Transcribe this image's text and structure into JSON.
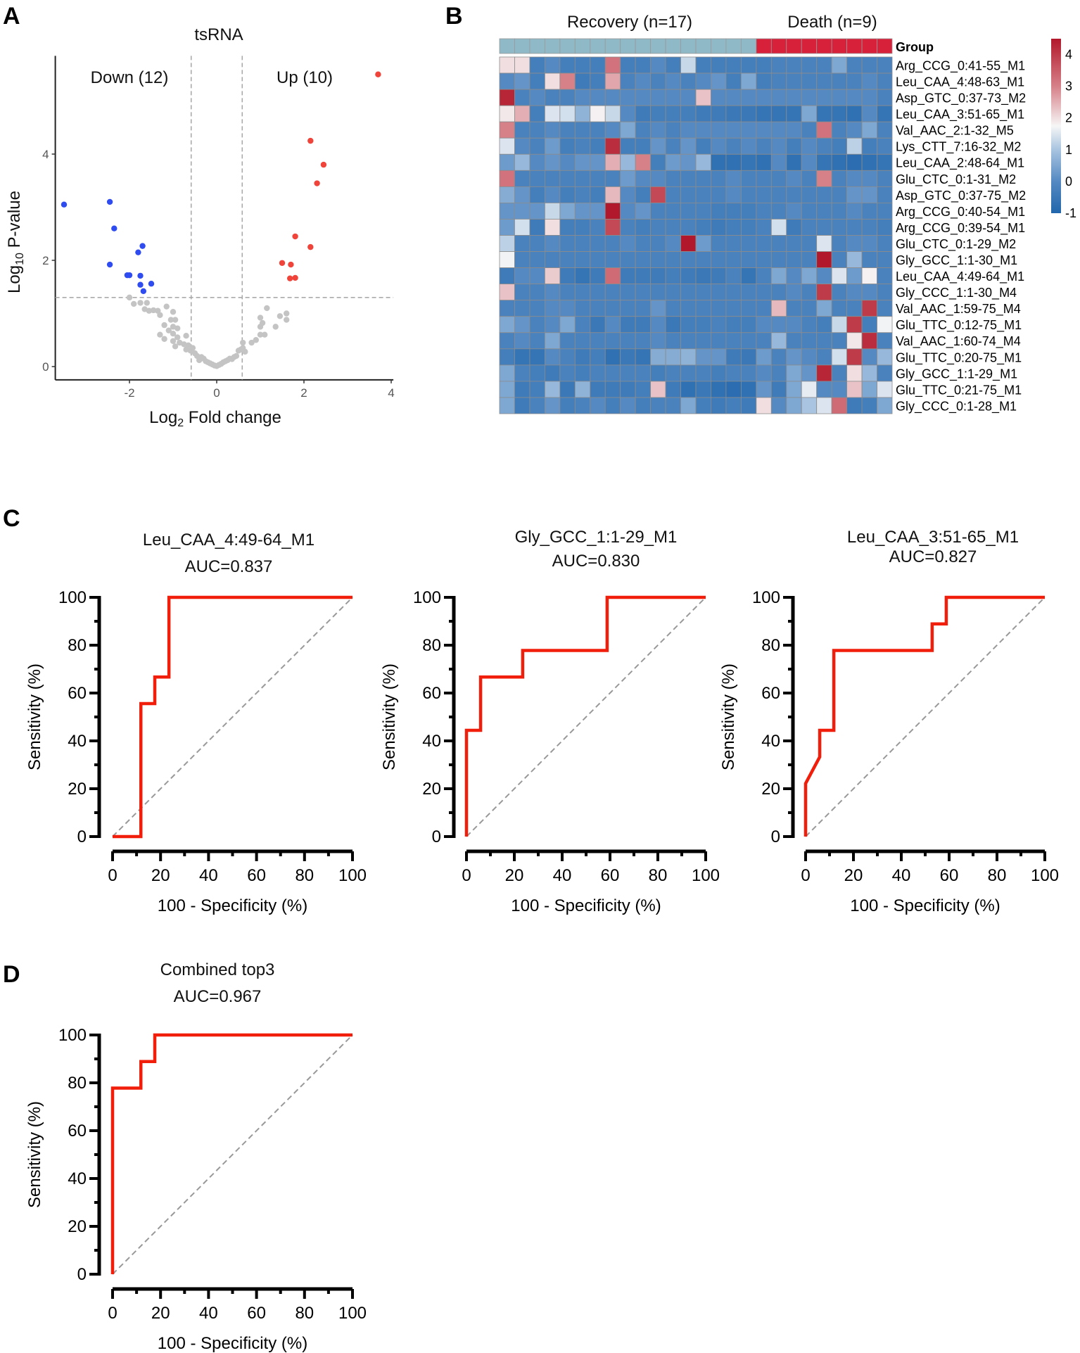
{
  "panel_labels": [
    "A",
    "B",
    "C",
    "D"
  ],
  "chart_data": [
    {
      "type": "scatter",
      "title": "tsRNA",
      "xlabel": "Log2 Fold change",
      "ylabel": "Log10 P-value",
      "xlim": [
        -3.7,
        4.05
      ],
      "ylim": [
        -0.25,
        5.85
      ],
      "xticks": [
        -2,
        0,
        2,
        4
      ],
      "yticks": [
        0,
        2,
        4
      ],
      "thresholds": {
        "x": [
          -0.585,
          0.585
        ],
        "y": 1.3
      },
      "annotations": {
        "down": "Down (12)",
        "up": "Up (10)"
      },
      "colors": {
        "up": "#f0443a",
        "down": "#2f4cf0",
        "ns": "#c4c4c4"
      },
      "up": [
        [
          3.7,
          5.5
        ],
        [
          2.15,
          4.25
        ],
        [
          2.45,
          3.8
        ],
        [
          2.3,
          3.45
        ],
        [
          1.8,
          2.45
        ],
        [
          2.15,
          2.25
        ],
        [
          1.5,
          1.95
        ],
        [
          1.7,
          1.92
        ],
        [
          1.68,
          1.66
        ],
        [
          1.8,
          1.67
        ]
      ],
      "down": [
        [
          -3.5,
          3.05
        ],
        [
          -2.45,
          3.1
        ],
        [
          -2.35,
          2.6
        ],
        [
          -1.7,
          2.27
        ],
        [
          -1.8,
          2.15
        ],
        [
          -2.45,
          1.92
        ],
        [
          -2.05,
          1.72
        ],
        [
          -2.0,
          1.72
        ],
        [
          -1.75,
          1.71
        ],
        [
          -1.75,
          1.54
        ],
        [
          -1.5,
          1.56
        ],
        [
          -1.68,
          1.42
        ]
      ],
      "ns": [
        [
          -2,
          1.3
        ],
        [
          -1.9,
          1.18
        ],
        [
          -1.75,
          1.2
        ],
        [
          -1.6,
          1.2
        ],
        [
          -1.65,
          1.08
        ],
        [
          -1.55,
          1.05
        ],
        [
          -1.45,
          1.06
        ],
        [
          -1.35,
          1.05
        ],
        [
          -1.15,
          1.13
        ],
        [
          -1.0,
          1.03
        ],
        [
          -1.3,
          0.97
        ],
        [
          -1.05,
          0.88
        ],
        [
          -0.95,
          0.88
        ],
        [
          -1.2,
          0.78
        ],
        [
          -1.0,
          0.75
        ],
        [
          -0.9,
          0.72
        ],
        [
          -1.1,
          0.68
        ],
        [
          -1.3,
          0.6
        ],
        [
          -1.2,
          0.52
        ],
        [
          -1.0,
          0.62
        ],
        [
          -0.9,
          0.55
        ],
        [
          -1.0,
          0.48
        ],
        [
          -0.7,
          0.58
        ],
        [
          -0.85,
          0.45
        ],
        [
          -0.75,
          0.42
        ],
        [
          -0.65,
          0.4
        ],
        [
          -0.95,
          0.38
        ],
        [
          -0.55,
          0.35
        ],
        [
          -0.6,
          0.3
        ],
        [
          -0.7,
          0.32
        ],
        [
          -0.5,
          0.25
        ],
        [
          -0.45,
          0.2
        ],
        [
          -0.35,
          0.18
        ],
        [
          -0.3,
          0.15
        ],
        [
          -0.4,
          0.12
        ],
        [
          -0.25,
          0.1
        ],
        [
          -0.2,
          0.08
        ],
        [
          -0.15,
          0.06
        ],
        [
          -0.1,
          0.04
        ],
        [
          -0.05,
          0.02
        ],
        [
          0,
          0.01
        ],
        [
          0.05,
          0.03
        ],
        [
          0.1,
          0.05
        ],
        [
          0.15,
          0.08
        ],
        [
          0.2,
          0.1
        ],
        [
          0.25,
          0.12
        ],
        [
          0.3,
          0.15
        ],
        [
          0.35,
          0.14
        ],
        [
          0.4,
          0.18
        ],
        [
          0.45,
          0.2
        ],
        [
          0.5,
          0.3
        ],
        [
          0.55,
          0.32
        ],
        [
          0.6,
          0.45
        ],
        [
          0.6,
          0.35
        ],
        [
          0.65,
          0.28
        ],
        [
          0.8,
          0.45
        ],
        [
          0.9,
          0.5
        ],
        [
          1.0,
          0.6
        ],
        [
          1.0,
          0.75
        ],
        [
          1.05,
          0.82
        ],
        [
          1.0,
          0.92
        ],
        [
          1.1,
          0.6
        ],
        [
          1.15,
          1.1
        ],
        [
          1.35,
          0.75
        ],
        [
          1.45,
          0.95
        ],
        [
          1.6,
          0.88
        ],
        [
          1.6,
          1.0
        ]
      ]
    },
    {
      "type": "heatmap",
      "group_labels": [
        "Recovery (n=17)",
        "Death (n=9)"
      ],
      "group_counts": [
        17,
        9
      ],
      "group_title": "Group",
      "group_colors": [
        "#8fb9c6",
        "#d7213a"
      ],
      "colorbar_ticks": [
        4,
        3,
        2,
        1,
        0,
        -1
      ],
      "colorbar_range": [
        -1,
        4.5
      ],
      "rows": [
        "Arg_CCG_0:41-55_M1",
        "Leu_CAA_4:48-63_M1",
        "Asp_GTC_0:37-73_M2",
        "Leu_CAA_3:51-65_M1",
        "Val_AAC_2:1-32_M5",
        "Lys_CTT_7:16-32_M2",
        "Leu_CAA_2:48-64_M1",
        "Glu_CTC_0:1-31_M2",
        "Asp_GTC_0:37-75_M2",
        "Arg_CCG_0:40-54_M1",
        "Arg_CCG_0:39-54_M1",
        "Glu_CTC_0:1-29_M2",
        "Gly_GCC_1:1-30_M1",
        "Leu_CAA_4:49-64_M1",
        "Gly_CCC_1:1-30_M4",
        "Val_AAC_1:59-75_M4",
        "Glu_TTC_0:12-75_M1",
        "Val_AAC_1:60-74_M4",
        "Glu_TTC_0:20-75_M1",
        "Gly_GCC_1:1-29_M1",
        "Glu_TTC_0:21-75_M1",
        "Gly_CCC_0:1-28_M1"
      ],
      "values": [
        [
          2,
          2,
          -0.3,
          0,
          -0.3,
          -0.3,
          -0.3,
          3.2,
          -0.3,
          -0.3,
          0,
          -0.3,
          1.3,
          -0.3,
          -0.3,
          -0.3,
          -0.3,
          -0.3,
          -0.2,
          -0.2,
          -0.2,
          -0.2,
          0.5,
          -0.2,
          -0.2,
          -0.2
        ],
        [
          0,
          0.2,
          -0.3,
          2,
          3,
          -0.4,
          -0.3,
          2.6,
          -0.2,
          0,
          -0.2,
          0,
          -0.2,
          0,
          0.2,
          -0.3,
          0.5,
          -0.3,
          -0.2,
          -0.2,
          -0.2,
          -0.2,
          -0.2,
          -0.2,
          0,
          -0.2
        ],
        [
          4.3,
          -0.2,
          0,
          -0.2,
          -0.2,
          0,
          0,
          0,
          0,
          0,
          0,
          0,
          0,
          2.3,
          0,
          0,
          0,
          0,
          0,
          0,
          0,
          0,
          0,
          0,
          0,
          -0.2
        ],
        [
          1.9,
          2.5,
          -0.3,
          1.5,
          1.4,
          0.7,
          1.8,
          1.3,
          0,
          -0.4,
          -0.3,
          -0.3,
          -0.3,
          -0.4,
          -0.4,
          -0.5,
          -0.5,
          -0.6,
          -0.6,
          -0.6,
          0.5,
          -0.6,
          -0.6,
          -0.7,
          0,
          -0.6
        ],
        [
          3,
          -0.2,
          -0.2,
          0,
          -0.2,
          -0.2,
          -0.2,
          0,
          0.5,
          -0.2,
          0,
          -0.2,
          0,
          0,
          0,
          0,
          0,
          0,
          0,
          0,
          -0.2,
          3.2,
          -0.2,
          0,
          0.5,
          -0.2
        ],
        [
          1.5,
          0,
          -0.2,
          0.3,
          -0.3,
          -0.2,
          -0.3,
          4.2,
          -0.3,
          -0.3,
          0.2,
          -0.2,
          0.2,
          -0.3,
          0,
          -0.2,
          0,
          -0.2,
          0,
          -0.3,
          0,
          -0.2,
          -0.3,
          1.2,
          -0.3,
          -0.2
        ],
        [
          0.3,
          0.8,
          0,
          0.2,
          0,
          0.2,
          0.2,
          2.5,
          0.8,
          3,
          -0.3,
          0.3,
          0.2,
          0.8,
          -0.7,
          -0.7,
          -0.6,
          -0.7,
          0,
          -0.7,
          0,
          -0.6,
          -0.7,
          -0.8,
          -0.7,
          -0.6
        ],
        [
          3.2,
          -0.2,
          -0.2,
          -0.2,
          -0.2,
          -0.2,
          -0.2,
          -0.2,
          0.3,
          0,
          0,
          -0.2,
          -0.2,
          -0.2,
          -0.2,
          0,
          -0.2,
          -0.2,
          -0.2,
          0,
          -0.2,
          3,
          -0.2,
          0,
          0,
          -0.2
        ],
        [
          0.6,
          0.2,
          -0.3,
          0,
          -0.3,
          -0.2,
          -0.3,
          2.4,
          0,
          -0.3,
          3.8,
          -0.2,
          -0.2,
          -0.2,
          -0.2,
          0,
          -0.2,
          -0.2,
          -0.2,
          -0.2,
          -0.2,
          -0.2,
          -0.2,
          0.2,
          0.2,
          -0.2
        ],
        [
          0.2,
          0.2,
          0.2,
          1.3,
          0.5,
          0.2,
          0.2,
          4.5,
          0,
          0.2,
          -0.2,
          -0.2,
          -0.2,
          -0.2,
          -0.3,
          -0.3,
          -0.3,
          -0.2,
          -0.2,
          0,
          -0.2,
          -0.2,
          -0.2,
          0,
          -0.2,
          -0.2
        ],
        [
          0.3,
          1.4,
          -0.4,
          2,
          -0.3,
          -0.3,
          -0.2,
          3.8,
          -0.2,
          -0.3,
          -0.2,
          -0.2,
          -0.2,
          -0.3,
          -0.4,
          -0.3,
          -0.3,
          -0.2,
          1.4,
          -0.4,
          -0.2,
          -0.2,
          -0.2,
          -0.2,
          -0.2,
          -0.3
        ],
        [
          1.2,
          -0.2,
          -0.2,
          0,
          -0.2,
          -0.2,
          -0.2,
          -0.2,
          0,
          -0.2,
          -0.2,
          0,
          4.5,
          0.3,
          -0.2,
          -0.2,
          -0.2,
          -0.2,
          -0.2,
          -0.2,
          -0.2,
          1.5,
          -0.2,
          0,
          0,
          -0.2
        ],
        [
          1.7,
          -0.2,
          -0.2,
          -0.2,
          -0.2,
          -0.2,
          -0.2,
          -0.2,
          -0.2,
          -0.2,
          -0.2,
          -0.2,
          -0.2,
          -0.2,
          -0.2,
          -0.2,
          -0.2,
          -0.2,
          -0.2,
          -0.2,
          -0.2,
          4.5,
          -0.2,
          0.8,
          -0.2,
          -0.2
        ],
        [
          -0.4,
          0,
          0,
          2.2,
          -0.4,
          -0.6,
          -0.4,
          3.3,
          -0.4,
          -0.4,
          -0.4,
          -0.3,
          -0.4,
          -0.5,
          -0.4,
          -0.2,
          -0.6,
          -0.2,
          0.5,
          0,
          0.5,
          0,
          1.5,
          0.3,
          1.8,
          -0.2
        ],
        [
          2.3,
          -0.2,
          -0.2,
          0,
          -0.2,
          -0.2,
          -0.2,
          -0.2,
          -0.2,
          -0.2,
          -0.2,
          -0.2,
          -0.2,
          -0.2,
          -0.2,
          -0.2,
          -0.2,
          -0.2,
          -0.2,
          0,
          -0.2,
          4,
          -0.2,
          0,
          0,
          -0.2
        ],
        [
          -0.2,
          -0.2,
          -0.2,
          0,
          0,
          -0.2,
          -0.2,
          -0.2,
          -0.2,
          -0.2,
          0.2,
          -0.2,
          -0.2,
          -0.2,
          -0.2,
          -0.2,
          -0.2,
          -0.2,
          2.4,
          -0.2,
          -0.2,
          0.5,
          -0.2,
          -0.2,
          4,
          -0.2
        ],
        [
          0.5,
          0.2,
          -0.2,
          0,
          0.5,
          -0.2,
          -0.5,
          0,
          -0.4,
          -0.4,
          0,
          -0.5,
          -0.3,
          -0.3,
          -0.2,
          -0.3,
          -0.3,
          0,
          0,
          0,
          -0.2,
          -0.3,
          1.3,
          4,
          -0.3,
          1.7
        ],
        [
          -0.2,
          0,
          -0.2,
          0.5,
          -0.2,
          -0.2,
          -0.2,
          -0.2,
          -0.2,
          -0.2,
          0,
          -0.2,
          -0.2,
          -0.2,
          -0.2,
          -0.2,
          -0.2,
          -0.2,
          0.8,
          -0.2,
          -0.2,
          -0.2,
          -0.2,
          1.9,
          4.2,
          -0.2
        ],
        [
          -0.3,
          -0.6,
          -0.6,
          0,
          -0.2,
          -0.4,
          -0.3,
          -0.7,
          -0.5,
          -0.6,
          0.6,
          0.6,
          0.7,
          0.2,
          0.2,
          -0.4,
          -0.5,
          0.3,
          -0.2,
          0.2,
          0,
          -0.2,
          1.4,
          4,
          0,
          0.8
        ],
        [
          0.5,
          -0.2,
          -0.3,
          -0.4,
          -0.2,
          -0.3,
          -0.2,
          -0.2,
          -0.2,
          -0.2,
          -0.3,
          -0.2,
          -0.2,
          -0.2,
          -0.3,
          -0.2,
          -0.2,
          0,
          -0.2,
          0.5,
          0.2,
          4.3,
          -0.2,
          2,
          0.8,
          -0.2
        ],
        [
          0.5,
          -0.4,
          -0.3,
          0.8,
          -0.5,
          0.7,
          -0.4,
          -0.4,
          -0.4,
          -0.3,
          2.3,
          -0.4,
          -0.7,
          -0.5,
          -0.7,
          -0.8,
          -0.7,
          0.2,
          -0.4,
          0.5,
          1.6,
          0,
          0,
          2.3,
          0.5,
          1.5
        ],
        [
          0.5,
          -0.4,
          -0.2,
          0.2,
          -0.3,
          -0.2,
          0,
          -0.3,
          0,
          -0.3,
          -0.2,
          -0.2,
          0.5,
          -0.3,
          -0.4,
          -0.3,
          -0.4,
          2,
          0,
          0.5,
          1,
          1.5,
          3.3,
          -0.4,
          -0.3,
          0.5
        ]
      ]
    },
    {
      "type": "line",
      "title": "Leu_CAA_4:49-64_M1",
      "subtitle": "AUC=0.837",
      "xlabel": "100 - Specificity (%)",
      "ylabel": "Sensitivity (%)",
      "xlim": [
        0,
        100
      ],
      "ylim": [
        0,
        100
      ],
      "ticks": [
        0,
        20,
        40,
        60,
        80,
        100
      ],
      "line_color": "#f01e0a",
      "points": [
        [
          0,
          0
        ],
        [
          11.8,
          0
        ],
        [
          11.8,
          55.6
        ],
        [
          17.6,
          55.6
        ],
        [
          17.6,
          66.7
        ],
        [
          23.5,
          66.7
        ],
        [
          23.5,
          100
        ],
        [
          100,
          100
        ]
      ]
    },
    {
      "type": "line",
      "title": "Gly_GCC_1:1-29_M1",
      "subtitle": "AUC=0.830",
      "xlabel": "100 - Specificity (%)",
      "ylabel": "Sensitivity (%)",
      "xlim": [
        0,
        100
      ],
      "ylim": [
        0,
        100
      ],
      "ticks": [
        0,
        20,
        40,
        60,
        80,
        100
      ],
      "line_color": "#f01e0a",
      "points": [
        [
          0,
          0
        ],
        [
          0,
          44.4
        ],
        [
          5.9,
          44.4
        ],
        [
          5.9,
          66.7
        ],
        [
          23.5,
          66.7
        ],
        [
          23.5,
          77.8
        ],
        [
          58.8,
          77.8
        ],
        [
          58.8,
          100
        ],
        [
          100,
          100
        ]
      ]
    },
    {
      "type": "line",
      "title": "Leu_CAA_3:51-65_M1",
      "subtitle": "AUC=0.827",
      "xlabel": "100 - Specificity (%)",
      "ylabel": "Sensitivity (%)",
      "xlim": [
        0,
        100
      ],
      "ylim": [
        0,
        100
      ],
      "ticks": [
        0,
        20,
        40,
        60,
        80,
        100
      ],
      "line_color": "#f01e0a",
      "points": [
        [
          0,
          0
        ],
        [
          0,
          22.2
        ],
        [
          5.9,
          33.3
        ],
        [
          5.9,
          44.4
        ],
        [
          11.8,
          44.4
        ],
        [
          11.8,
          77.8
        ],
        [
          52.9,
          77.8
        ],
        [
          52.9,
          88.9
        ],
        [
          58.8,
          88.9
        ],
        [
          58.8,
          100
        ],
        [
          100,
          100
        ]
      ]
    },
    {
      "type": "line",
      "title": "Combined top3",
      "subtitle": "AUC=0.967",
      "xlabel": "100 - Specificity (%)",
      "ylabel": "Sensitivity (%)",
      "xlim": [
        0,
        100
      ],
      "ylim": [
        0,
        100
      ],
      "ticks": [
        0,
        20,
        40,
        60,
        80,
        100
      ],
      "line_color": "#f01e0a",
      "points": [
        [
          0,
          0
        ],
        [
          0,
          77.8
        ],
        [
          11.8,
          77.8
        ],
        [
          11.8,
          88.9
        ],
        [
          17.6,
          88.9
        ],
        [
          17.6,
          100
        ],
        [
          100,
          100
        ]
      ]
    }
  ]
}
